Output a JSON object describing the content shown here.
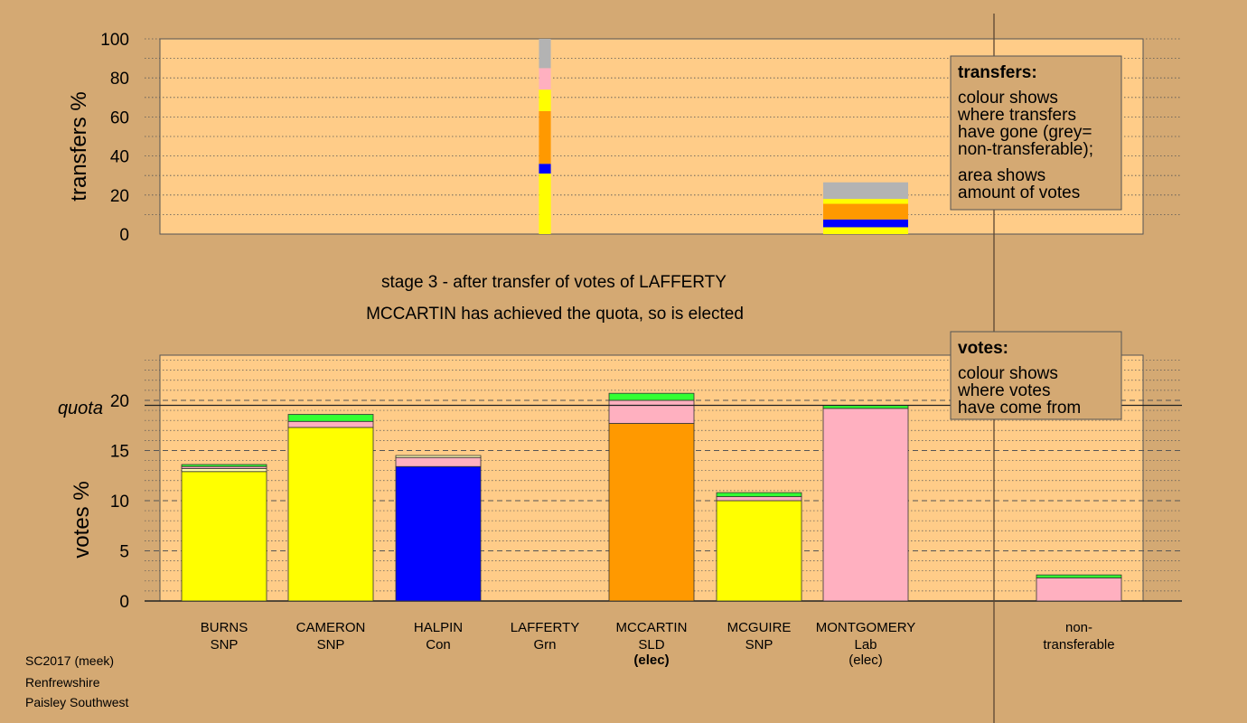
{
  "chart_data": [
    {
      "type": "bar",
      "stacked": true,
      "ylabel": "transfers %",
      "ylim": [
        0,
        100
      ],
      "yticks": [
        0,
        20,
        40,
        60,
        80,
        100
      ],
      "grid": "dotted-horizontal",
      "x_slots": [
        "BURNS",
        "CAMERON",
        "HALPIN",
        "LAFFERTY",
        "MCCARTIN",
        "MCGUIRE",
        "MONTGOMERY",
        "non-transferable"
      ],
      "bars": [
        {
          "candidate": "LAFFERTY",
          "relative_width": 0.14,
          "segments": [
            {
              "color": "#ffff00",
              "value": 31
            },
            {
              "color": "#0000ff",
              "value": 5
            },
            {
              "color": "#ff9900",
              "value": 27
            },
            {
              "color": "#ffff00",
              "value": 11
            },
            {
              "color": "#ffb0c0",
              "value": 11
            },
            {
              "color": "#b3b3b3",
              "value": 15
            }
          ]
        },
        {
          "candidate": "MONTGOMERY",
          "relative_width": 1.0,
          "segments": [
            {
              "color": "#ffff00",
              "value": 3.5
            },
            {
              "color": "#0000ff",
              "value": 4
            },
            {
              "color": "#ff9900",
              "value": 8
            },
            {
              "color": "#ffff00",
              "value": 2.5
            },
            {
              "color": "#b3b3b3",
              "value": 8.5
            }
          ]
        }
      ],
      "legend": {
        "title": "transfers:",
        "lines": [
          "colour shows",
          "where transfers",
          "have gone (grey=",
          "non-transferable);",
          "area shows",
          "amount of votes"
        ]
      }
    },
    {
      "type": "bar",
      "stacked": true,
      "ylabel": "votes %",
      "ylim": [
        0,
        24.5
      ],
      "yticks": [
        0,
        5,
        10,
        15,
        20
      ],
      "quota": 19.5,
      "quota_label": "quota",
      "grid": "dashed-horizontal",
      "candidates": [
        {
          "name": "BURNS",
          "party": "SNP",
          "status": "",
          "segments": [
            {
              "color": "#ffff00",
              "value": 12.9
            },
            {
              "color": "#ffffb0",
              "value": 0.3
            },
            {
              "color": "#ffb0c0",
              "value": 0.2
            },
            {
              "color": "#33ff33",
              "value": 0.2
            }
          ]
        },
        {
          "name": "CAMERON",
          "party": "SNP",
          "status": "",
          "segments": [
            {
              "color": "#ffff00",
              "value": 17.3
            },
            {
              "color": "#ffb0c0",
              "value": 0.6
            },
            {
              "color": "#33ff33",
              "value": 0.7
            }
          ]
        },
        {
          "name": "HALPIN",
          "party": "Con",
          "status": "",
          "segments": [
            {
              "color": "#0000ff",
              "value": 13.4
            },
            {
              "color": "#ffb0c0",
              "value": 0.9
            },
            {
              "color": "#ffffb0",
              "value": 0.2
            }
          ]
        },
        {
          "name": "LAFFERTY",
          "party": "Grn",
          "status": "",
          "segments": []
        },
        {
          "name": "MCCARTIN",
          "party": "SLD",
          "status": "(elec)",
          "status_bold": true,
          "segments": [
            {
              "color": "#ff9900",
              "value": 17.7
            },
            {
              "color": "#ffb0c0",
              "value": 2.3
            },
            {
              "color": "#33ff33",
              "value": 0.7
            }
          ]
        },
        {
          "name": "MCGUIRE",
          "party": "SNP",
          "status": "",
          "segments": [
            {
              "color": "#ffff00",
              "value": 10.0
            },
            {
              "color": "#ffb0c0",
              "value": 0.4
            },
            {
              "color": "#33ff33",
              "value": 0.4
            }
          ]
        },
        {
          "name": "MONTGOMERY",
          "party": "Lab",
          "status": "(elec)",
          "status_bold": false,
          "segments": [
            {
              "color": "#ffb0c0",
              "value": 19.2
            },
            {
              "color": "#33ff33",
              "value": 0.3
            }
          ]
        }
      ],
      "non_transferable": {
        "label_lines": [
          "non-",
          "transferable"
        ],
        "segments": [
          {
            "color": "#ffb0c0",
            "value": 2.3
          },
          {
            "color": "#33ff33",
            "value": 0.3
          }
        ]
      },
      "legend": {
        "title": "votes:",
        "lines": [
          "colour shows",
          "where votes",
          "have come from"
        ]
      }
    }
  ],
  "stage_text": "stage 3 - after transfer of votes of LAFFERTY",
  "elected_text": "MCCARTIN has achieved the quota, so is elected",
  "footer": [
    "SC2017 (meek)",
    "Renfrewshire",
    "Paisley Southwest"
  ]
}
